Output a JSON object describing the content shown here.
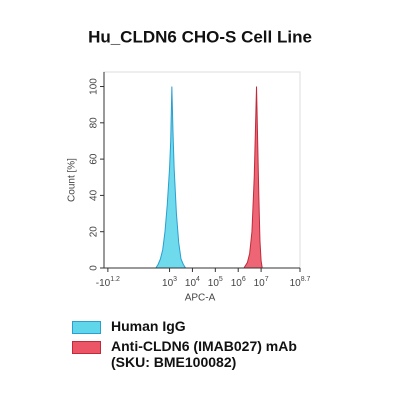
{
  "chart_data": {
    "type": "area",
    "title": "Hu_CLDN6 CHO-S Cell Line",
    "xlabel": "APC-A",
    "ylabel": "Count [%]",
    "xscale": "biexponential",
    "linear_width": 6,
    "xlim": [
      -25,
      501187234
    ],
    "xticks": [
      {
        "value": -15.85,
        "label": "-10^1.2"
      },
      {
        "value": 1000,
        "label": "10^3"
      },
      {
        "value": 10000,
        "label": "10^4"
      },
      {
        "value": 100000,
        "label": "10^5"
      },
      {
        "value": 1000000,
        "label": "10^6"
      },
      {
        "value": 10000000,
        "label": "10^7"
      },
      {
        "value": 501187234,
        "label": "10^8.7"
      }
    ],
    "ylim": [
      0,
      108
    ],
    "yticks": [
      0,
      20,
      40,
      60,
      80,
      100
    ],
    "legend": "bottom-left",
    "series": [
      {
        "name": "Human IgG",
        "color": "#5fd6ea",
        "edge": "#2a9fd0",
        "x": [
          251,
          316,
          398,
          501,
          631,
          794,
          1000,
          1122,
          1259,
          1413,
          1585,
          1995,
          2512,
          3162,
          3981,
          5012
        ],
        "values": [
          0,
          2,
          5,
          10,
          20,
          35,
          55,
          70,
          100,
          75,
          55,
          30,
          14,
          5,
          2,
          0
        ]
      },
      {
        "name": "Anti-CLDN6 (IMAB027) mAb (SKU: BME100082)",
        "color": "#ec5566",
        "edge": "#c02a3a",
        "x": [
          1778279,
          2511886,
          3162278,
          3981072,
          5011872,
          5623413,
          6309573,
          7079458,
          7943282,
          8912509,
          10000000,
          11220185
        ],
        "values": [
          0,
          3,
          8,
          20,
          50,
          75,
          100,
          70,
          40,
          15,
          4,
          0
        ]
      }
    ]
  }
}
